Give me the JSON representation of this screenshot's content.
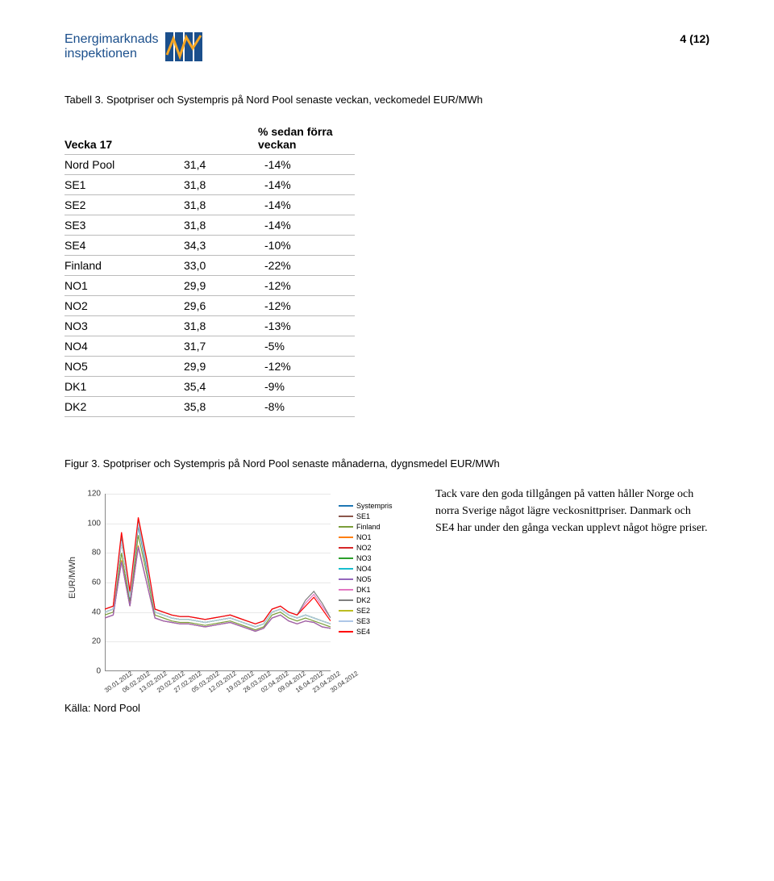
{
  "header": {
    "logo_line1": "Energimarknads",
    "logo_line2": "inspektionen",
    "page_number": "4 (12)"
  },
  "table": {
    "caption": "Tabell 3. Spotpriser och Systempris på Nord Pool senaste veckan, veckomedel EUR/MWh",
    "headers": {
      "left": "Vecka 17",
      "mid": "",
      "right": "% sedan förra veckan"
    },
    "rows": [
      {
        "region": "Nord Pool",
        "value": "31,4",
        "pct": "-14%"
      },
      {
        "region": "SE1",
        "value": "31,8",
        "pct": "-14%"
      },
      {
        "region": "SE2",
        "value": "31,8",
        "pct": "-14%"
      },
      {
        "region": "SE3",
        "value": "31,8",
        "pct": "-14%"
      },
      {
        "region": "SE4",
        "value": "34,3",
        "pct": "-10%"
      },
      {
        "region": "Finland",
        "value": "33,0",
        "pct": "-22%"
      },
      {
        "region": "NO1",
        "value": "29,9",
        "pct": "-12%"
      },
      {
        "region": "NO2",
        "value": "29,6",
        "pct": "-12%"
      },
      {
        "region": "NO3",
        "value": "31,8",
        "pct": "-13%"
      },
      {
        "region": "NO4",
        "value": "31,7",
        "pct": "-5%"
      },
      {
        "region": "NO5",
        "value": "29,9",
        "pct": "-12%"
      },
      {
        "region": "DK1",
        "value": "35,4",
        "pct": "-9%"
      },
      {
        "region": "DK2",
        "value": "35,8",
        "pct": "-8%"
      }
    ]
  },
  "chart": {
    "caption": "Figur 3. Spotpriser och Systempris på Nord Pool senaste månaderna, dygnsmedel EUR/MWh",
    "type": "line",
    "ylabel": "EUR/MWh",
    "ylim": [
      0,
      120
    ],
    "ytick_step": 20,
    "yticks": [
      0,
      20,
      40,
      60,
      80,
      100,
      120
    ],
    "background_color": "#ffffff",
    "grid_color": "#e8e8e8",
    "axis_color": "#888888",
    "label_fontsize": 10,
    "tick_fontsize": 9,
    "x_labels": [
      "30.01.2012",
      "06.02.2012",
      "13.02.2012",
      "20.02.2012",
      "27.02.2012",
      "05.03.2012",
      "12.03.2012",
      "19.03.2012",
      "26.03.2012",
      "02.04.2012",
      "09.04.2012",
      "16.04.2012",
      "23.04.2012",
      "30.04.2012"
    ],
    "legend_position": "right",
    "series": [
      {
        "name": "Systempris",
        "color": "#1f77b4",
        "values": [
          40,
          42,
          90,
          48,
          98,
          70,
          40,
          38,
          36,
          35,
          35,
          34,
          33,
          34,
          35,
          36,
          34,
          32,
          30,
          32,
          40,
          42,
          38,
          36,
          38,
          36,
          34,
          32
        ]
      },
      {
        "name": "SE1",
        "color": "#8c564b",
        "values": [
          40,
          42,
          88,
          50,
          100,
          72,
          40,
          38,
          36,
          35,
          35,
          34,
          33,
          34,
          35,
          36,
          34,
          32,
          30,
          32,
          40,
          42,
          38,
          36,
          38,
          36,
          34,
          32
        ]
      },
      {
        "name": "Finland",
        "color": "#7b9e3a",
        "values": [
          38,
          40,
          80,
          46,
          92,
          66,
          38,
          36,
          34,
          33,
          33,
          32,
          31,
          32,
          33,
          34,
          32,
          30,
          28,
          30,
          38,
          40,
          36,
          34,
          36,
          34,
          32,
          30
        ]
      },
      {
        "name": "NO1",
        "color": "#ff7f0e",
        "values": [
          36,
          38,
          75,
          44,
          85,
          60,
          36,
          34,
          33,
          32,
          32,
          31,
          30,
          31,
          32,
          33,
          31,
          29,
          27,
          29,
          36,
          38,
          34,
          32,
          34,
          33,
          30,
          29
        ]
      },
      {
        "name": "NO2",
        "color": "#d62728",
        "values": [
          36,
          38,
          74,
          44,
          84,
          60,
          36,
          34,
          33,
          32,
          32,
          31,
          30,
          31,
          32,
          33,
          31,
          29,
          27,
          29,
          36,
          38,
          34,
          32,
          34,
          33,
          30,
          29
        ]
      },
      {
        "name": "NO3",
        "color": "#2ca02c",
        "values": [
          40,
          42,
          88,
          50,
          100,
          72,
          40,
          38,
          36,
          35,
          35,
          34,
          33,
          34,
          35,
          36,
          34,
          32,
          30,
          32,
          40,
          42,
          38,
          36,
          38,
          36,
          34,
          32
        ]
      },
      {
        "name": "NO4",
        "color": "#17becf",
        "values": [
          40,
          42,
          88,
          50,
          100,
          72,
          40,
          38,
          36,
          35,
          35,
          34,
          33,
          34,
          35,
          36,
          34,
          32,
          30,
          32,
          40,
          42,
          38,
          36,
          38,
          36,
          34,
          32
        ]
      },
      {
        "name": "NO5",
        "color": "#9467bd",
        "values": [
          36,
          38,
          74,
          44,
          84,
          60,
          36,
          34,
          33,
          32,
          32,
          31,
          30,
          31,
          32,
          33,
          31,
          29,
          27,
          29,
          36,
          38,
          34,
          32,
          34,
          33,
          30,
          29
        ]
      },
      {
        "name": "DK1",
        "color": "#e377c2",
        "values": [
          42,
          44,
          92,
          52,
          102,
          74,
          42,
          40,
          38,
          37,
          37,
          36,
          35,
          36,
          37,
          38,
          36,
          34,
          32,
          34,
          42,
          44,
          40,
          38,
          46,
          52,
          44,
          36
        ]
      },
      {
        "name": "DK2",
        "color": "#7f7f7f",
        "values": [
          42,
          44,
          92,
          52,
          102,
          74,
          42,
          40,
          38,
          37,
          37,
          36,
          35,
          36,
          37,
          38,
          36,
          34,
          32,
          34,
          42,
          44,
          40,
          38,
          48,
          54,
          46,
          36
        ]
      },
      {
        "name": "SE2",
        "color": "#bcbd22",
        "values": [
          40,
          42,
          88,
          50,
          100,
          72,
          40,
          38,
          36,
          35,
          35,
          34,
          33,
          34,
          35,
          36,
          34,
          32,
          30,
          32,
          40,
          42,
          38,
          36,
          38,
          36,
          34,
          32
        ]
      },
      {
        "name": "SE3",
        "color": "#aec7e8",
        "values": [
          40,
          42,
          88,
          50,
          100,
          72,
          40,
          38,
          36,
          35,
          35,
          34,
          33,
          34,
          35,
          36,
          34,
          32,
          30,
          32,
          40,
          42,
          38,
          36,
          38,
          36,
          34,
          32
        ]
      },
      {
        "name": "SE4",
        "color": "#ff0000",
        "values": [
          42,
          44,
          94,
          54,
          104,
          76,
          42,
          40,
          38,
          37,
          37,
          36,
          35,
          36,
          37,
          38,
          36,
          34,
          32,
          34,
          42,
          44,
          40,
          38,
          44,
          50,
          42,
          34
        ]
      }
    ],
    "source": "Källa: Nord Pool"
  },
  "commentary": "Tack vare den goda tillgången på vatten håller Norge och norra Sverige något lägre veckosnittpriser. Danmark och SE4 har under den gånga veckan upplevt något högre priser."
}
